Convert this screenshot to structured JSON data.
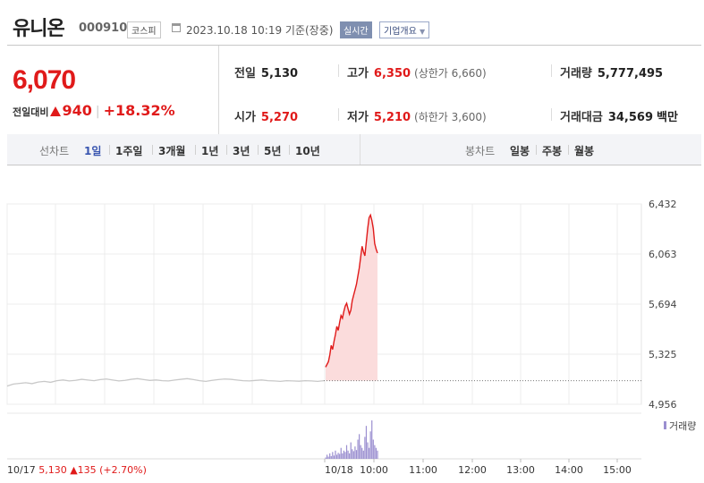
{
  "header": {
    "stock_name": "유니온",
    "stock_code": "000910",
    "market": "코스피",
    "datetime": "2023.10.18 10:19 기준(장중)",
    "realtime_label": "실시간",
    "company_overview_label": "기업개요"
  },
  "summary": {
    "current_price": "6,070",
    "diff_label": "전일대비",
    "diff_value": "940",
    "diff_rate": "+18.32%",
    "prev_close_label": "전일",
    "prev_close": "5,130",
    "open_label": "시가",
    "open": "5,270",
    "high_label": "고가",
    "high": "6,350",
    "upper_limit": "(상한가 6,660)",
    "low_label": "저가",
    "low": "5,210",
    "lower_limit": "(하한가 3,600)",
    "volume_label": "거래량",
    "volume": "5,777,495",
    "amount_label": "거래대금",
    "amount": "34,569",
    "amount_unit": "백만"
  },
  "tabs": {
    "line_label": "선차트",
    "line_periods": [
      "1일",
      "1주일",
      "3개월",
      "1년",
      "3년",
      "5년",
      "10년"
    ],
    "candle_label": "봉차트",
    "candle_periods": [
      "일봉",
      "주봉",
      "월봉"
    ]
  },
  "colors": {
    "up": "#e01a1a",
    "prev_day_line": "#c8c8c8",
    "area_fill": "#fbdcdc",
    "volume": "#9b8fd0",
    "accent": "#3a56b0"
  },
  "chart_data": {
    "type": "line",
    "ylim": [
      4956,
      6432
    ],
    "yticks": [
      "6,432",
      "6,063",
      "5,694",
      "5,325",
      "4,956"
    ],
    "ytick_values": [
      6432,
      6063,
      5694,
      5325,
      4956
    ],
    "xticks": [
      "10/18",
      "10:00",
      "11:00",
      "12:00",
      "13:00",
      "14:00",
      "15:00"
    ],
    "prev_day_label": "10/17",
    "prev_day_close": "5,130",
    "prev_day_change": "▲135 (+2.70%)",
    "volume_legend": "거래량",
    "series": [
      {
        "values": [
          5090,
          5105,
          5110,
          5115,
          5108,
          5120,
          5125,
          5118,
          5130,
          5135,
          5128,
          5132,
          5140,
          5135,
          5130,
          5138,
          5142,
          5135,
          5128,
          5132,
          5140,
          5145,
          5138,
          5132,
          5135,
          5130,
          5128,
          5135,
          5140,
          5145,
          5138,
          5130,
          5125,
          5132,
          5138,
          5142,
          5140,
          5135,
          5130,
          5128,
          5132,
          5135,
          5130,
          5128,
          5125,
          5130,
          5128,
          5126,
          5130,
          5128,
          5125,
          5130
        ]
      },
      {
        "values": [
          5230,
          5250,
          5270,
          5320,
          5390,
          5360,
          5420,
          5470,
          5530,
          5500,
          5560,
          5610,
          5590,
          5640,
          5680,
          5700,
          5660,
          5620,
          5650,
          5720,
          5760,
          5800,
          5840,
          5900,
          5960,
          6040,
          6120,
          6080,
          6050,
          6150,
          6250,
          6330,
          6350,
          6310,
          6250,
          6140,
          6100,
          6070
        ]
      }
    ],
    "volume_values": [
      0.5,
      1.5,
      0.8,
      2,
      1,
      2.5,
      1.2,
      3,
      1.5,
      2.2,
      1.8,
      4,
      2,
      3,
      2.5,
      5,
      3,
      2,
      6,
      3.5,
      2.8,
      4.5,
      3.2,
      7,
      9,
      5,
      4,
      3,
      8,
      12,
      6,
      4,
      10,
      14,
      7,
      5,
      4,
      3
    ]
  }
}
